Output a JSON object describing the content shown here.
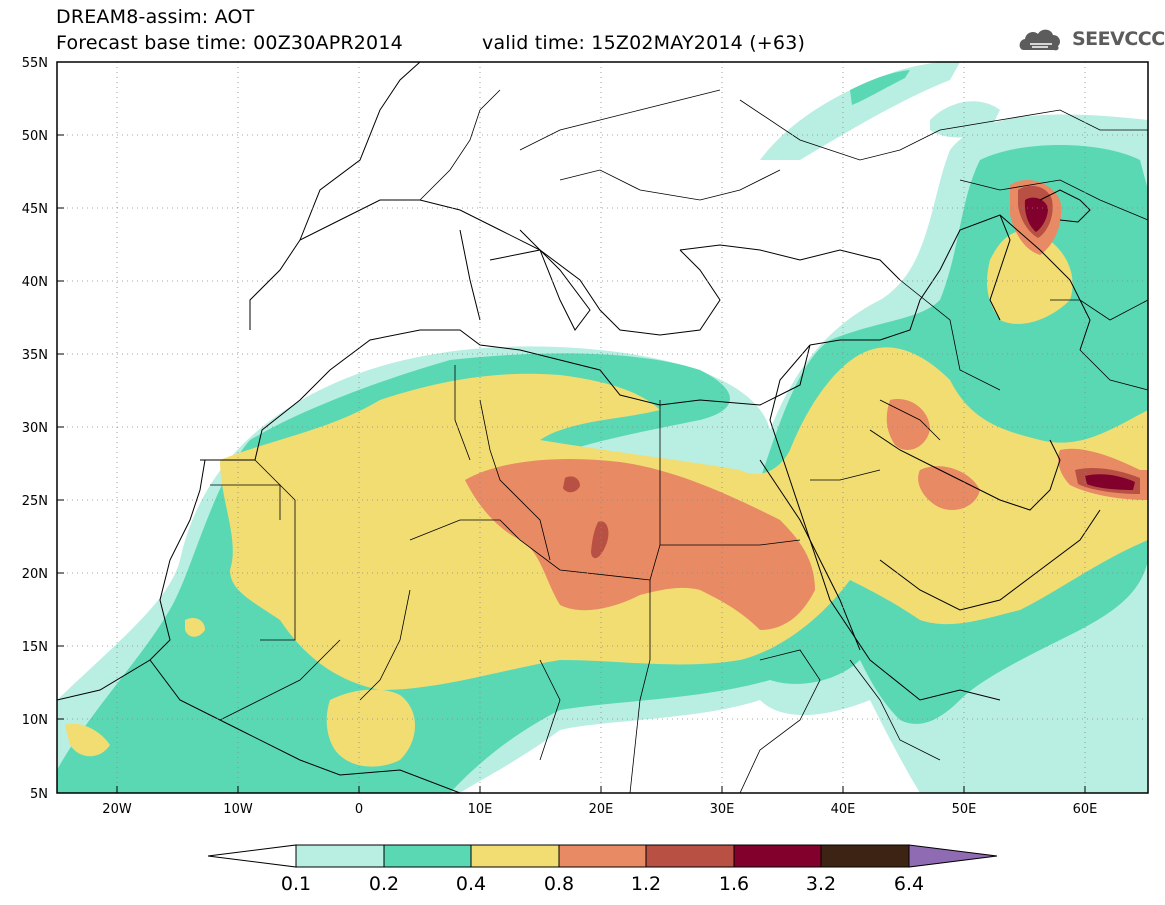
{
  "header": {
    "line1": "DREAM8-assim: AOT",
    "line2_left": "Forecast base time: 00Z30APR2014",
    "line2_right": "valid time: 15Z02MAY2014 (+63)",
    "logo_text": "SEEVCCC"
  },
  "map": {
    "lat_labels": [
      "55N",
      "50N",
      "45N",
      "40N",
      "35N",
      "30N",
      "25N",
      "20N",
      "15N",
      "10N",
      "5N"
    ],
    "lon_labels": [
      "20W",
      "10W",
      "0",
      "10E",
      "20E",
      "30E",
      "40E",
      "50E",
      "60E"
    ],
    "lon_range": [
      -25,
      65
    ],
    "lat_range": [
      5,
      55
    ],
    "grid": "dotted"
  },
  "colorbar": {
    "labels": [
      "0.1",
      "0.2",
      "0.4",
      "0.8",
      "1.2",
      "1.6",
      "3.2",
      "6.4"
    ],
    "colors": [
      "#ffffff",
      "#b9eee2",
      "#5ad8b4",
      "#f2dd73",
      "#e88a64",
      "#b85043",
      "#82002c",
      "#3d2314",
      "#8f6bb3"
    ]
  }
}
